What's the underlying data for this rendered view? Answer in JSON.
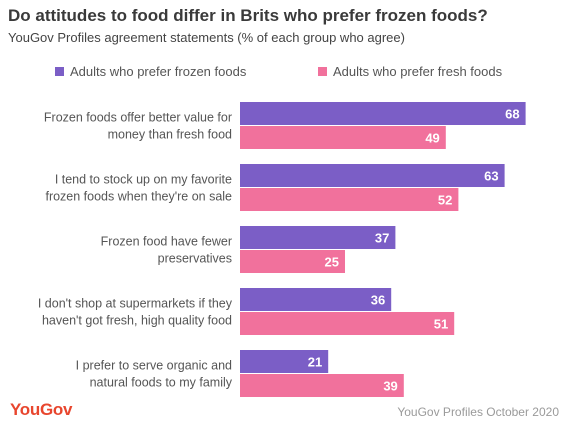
{
  "chart_data": {
    "type": "bar",
    "orientation": "horizontal",
    "title": "Do attitudes to food differ in Brits who prefer frozen foods?",
    "subtitle": "YouGov Profiles agreement statements (% of each group who agree)",
    "categories": [
      [
        "Frozen foods offer better value for",
        "money than fresh food"
      ],
      [
        "I tend to stock up on my favorite",
        "frozen foods when they're on sale"
      ],
      [
        "Frozen food have fewer",
        "preservatives"
      ],
      [
        "I don't shop at supermarkets if they",
        "haven't got fresh, high quality food"
      ],
      [
        "I prefer to serve organic and",
        "natural foods to my family"
      ]
    ],
    "series": [
      {
        "name": "Adults who prefer frozen foods",
        "color": "#7b5ec6",
        "values": [
          68,
          63,
          37,
          36,
          21
        ]
      },
      {
        "name": "Adults who prefer fresh foods",
        "color": "#f1719c",
        "values": [
          49,
          52,
          25,
          51,
          39
        ]
      }
    ],
    "xlim": [
      0,
      100
    ],
    "grid": false,
    "legend_position": "top"
  },
  "footer": {
    "logo": "YouGov",
    "source": "YouGov Profiles October 2020"
  }
}
